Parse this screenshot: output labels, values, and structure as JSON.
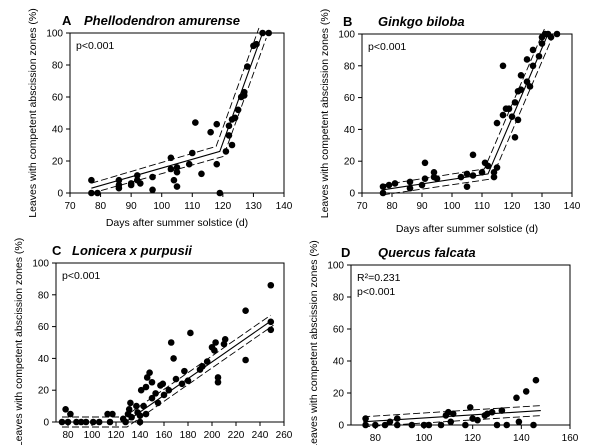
{
  "chart_data": [
    {
      "type": "scatter",
      "letter": "A",
      "title": "Phellodendron amurense",
      "xlabel": "Days after summer solstice (d)",
      "ylabel": "Leaves with competent abscission zones (%)",
      "stat": "p<0.001",
      "xlim": [
        70,
        140
      ],
      "ylim": [
        0,
        100
      ],
      "xticks": [
        70,
        80,
        90,
        100,
        110,
        120,
        130,
        140
      ],
      "yticks": [
        0,
        20,
        40,
        60,
        80,
        100
      ],
      "fit": {
        "kind": "piecewise",
        "break": 119,
        "y_start": 3,
        "y_break": 26,
        "x_end": 133,
        "y_end": 100
      },
      "points": [
        [
          77,
          0
        ],
        [
          77,
          8
        ],
        [
          79,
          0
        ],
        [
          86,
          3
        ],
        [
          86,
          8
        ],
        [
          86,
          5
        ],
        [
          90,
          6
        ],
        [
          90,
          5
        ],
        [
          92,
          8
        ],
        [
          92,
          11
        ],
        [
          93,
          6
        ],
        [
          97,
          10
        ],
        [
          97,
          2
        ],
        [
          103,
          22
        ],
        [
          103,
          15
        ],
        [
          104,
          8
        ],
        [
          105,
          13
        ],
        [
          105,
          16
        ],
        [
          105,
          4
        ],
        [
          109,
          18
        ],
        [
          110,
          25
        ],
        [
          111,
          44
        ],
        [
          113,
          12
        ],
        [
          116,
          38
        ],
        [
          118,
          43
        ],
        [
          118,
          18
        ],
        [
          119,
          0
        ],
        [
          121,
          26
        ],
        [
          122,
          42
        ],
        [
          122,
          36
        ],
        [
          123,
          46
        ],
        [
          123,
          30
        ],
        [
          124,
          47
        ],
        [
          125,
          52
        ],
        [
          126,
          60
        ],
        [
          127,
          61
        ],
        [
          127,
          63
        ],
        [
          128,
          79
        ],
        [
          130,
          92
        ],
        [
          131,
          93
        ],
        [
          133,
          100
        ],
        [
          135,
          100
        ]
      ]
    },
    {
      "type": "scatter",
      "letter": "B",
      "title": "Ginkgo biloba",
      "xlabel": "Days after summer solstice (d)",
      "ylabel": "Leaves with competent abscission zones (%)",
      "stat": "p<0.001",
      "xlim": [
        70,
        140
      ],
      "ylim": [
        0,
        100
      ],
      "xticks": [
        70,
        80,
        90,
        100,
        110,
        120,
        130,
        140
      ],
      "yticks": [
        0,
        20,
        40,
        60,
        80,
        100
      ],
      "fit": {
        "kind": "piecewise",
        "break": 112,
        "y_start": 2,
        "y_break": 12,
        "x_end": 132,
        "y_end": 100
      },
      "points": [
        [
          77,
          0
        ],
        [
          77,
          4
        ],
        [
          79,
          5
        ],
        [
          81,
          6
        ],
        [
          86,
          7
        ],
        [
          86,
          3
        ],
        [
          90,
          5
        ],
        [
          91,
          9
        ],
        [
          91,
          19
        ],
        [
          94,
          10
        ],
        [
          94,
          13
        ],
        [
          95,
          9
        ],
        [
          103,
          10
        ],
        [
          105,
          12
        ],
        [
          105,
          4
        ],
        [
          107,
          11
        ],
        [
          107,
          24
        ],
        [
          110,
          13
        ],
        [
          111,
          19
        ],
        [
          112,
          17
        ],
        [
          114,
          13
        ],
        [
          114,
          10
        ],
        [
          115,
          16
        ],
        [
          115,
          44
        ],
        [
          117,
          49
        ],
        [
          117,
          80
        ],
        [
          118,
          53
        ],
        [
          119,
          53
        ],
        [
          120,
          48
        ],
        [
          121,
          57
        ],
        [
          121,
          35
        ],
        [
          122,
          46
        ],
        [
          122,
          64
        ],
        [
          123,
          65
        ],
        [
          123,
          74
        ],
        [
          125,
          84
        ],
        [
          125,
          70
        ],
        [
          126,
          67
        ],
        [
          127,
          80
        ],
        [
          127,
          90
        ],
        [
          129,
          86
        ],
        [
          130,
          98
        ],
        [
          130,
          94
        ],
        [
          131,
          100
        ],
        [
          132,
          100
        ],
        [
          133,
          98
        ],
        [
          135,
          100
        ]
      ]
    },
    {
      "type": "scatter",
      "letter": "C",
      "title": "Lonicera x purpusii",
      "xlabel": "",
      "ylabel": "Leaves with competent abscission zones (%)",
      "stat": "p<0.001",
      "xlim": [
        70,
        260
      ],
      "ylim": [
        0,
        100
      ],
      "xticks": [
        80,
        100,
        120,
        140,
        160,
        180,
        200,
        220,
        240,
        260
      ],
      "yticks": [
        0,
        20,
        40,
        60,
        80,
        100
      ],
      "fit": {
        "kind": "piecewise",
        "break": 128,
        "y_start": 0,
        "y_break": 0,
        "x_end": 250,
        "y_end": 64
      },
      "points": [
        [
          75,
          0
        ],
        [
          78,
          8
        ],
        [
          80,
          0
        ],
        [
          82,
          5
        ],
        [
          87,
          0
        ],
        [
          91,
          0
        ],
        [
          95,
          0
        ],
        [
          101,
          0
        ],
        [
          106,
          0
        ],
        [
          113,
          5
        ],
        [
          115,
          0
        ],
        [
          117,
          5
        ],
        [
          126,
          2
        ],
        [
          128,
          0
        ],
        [
          130,
          5
        ],
        [
          131,
          8
        ],
        [
          132,
          12
        ],
        [
          133,
          3
        ],
        [
          137,
          10
        ],
        [
          138,
          6
        ],
        [
          140,
          0
        ],
        [
          140,
          4
        ],
        [
          141,
          20
        ],
        [
          143,
          10
        ],
        [
          145,
          5
        ],
        [
          145,
          22
        ],
        [
          146,
          28
        ],
        [
          148,
          31
        ],
        [
          150,
          25
        ],
        [
          150,
          15
        ],
        [
          153,
          18
        ],
        [
          155,
          12
        ],
        [
          157,
          23
        ],
        [
          159,
          24
        ],
        [
          160,
          17
        ],
        [
          164,
          20
        ],
        [
          166,
          50
        ],
        [
          168,
          40
        ],
        [
          170,
          27
        ],
        [
          175,
          24
        ],
        [
          177,
          32
        ],
        [
          180,
          26
        ],
        [
          182,
          56
        ],
        [
          190,
          33
        ],
        [
          192,
          35
        ],
        [
          196,
          38
        ],
        [
          200,
          47
        ],
        [
          202,
          45
        ],
        [
          203,
          50
        ],
        [
          205,
          25
        ],
        [
          205,
          28
        ],
        [
          210,
          49
        ],
        [
          211,
          52
        ],
        [
          228,
          39
        ],
        [
          228,
          70
        ],
        [
          249,
          58
        ],
        [
          249,
          63
        ],
        [
          249,
          86
        ]
      ]
    },
    {
      "type": "scatter",
      "letter": "D",
      "title": "Quercus falcata",
      "xlabel": "",
      "ylabel": "Leaves with competent abscission zones (%)",
      "stat_r2": "R²=0.231",
      "stat": "p<0.001",
      "xlim": [
        70,
        160
      ],
      "ylim": [
        0,
        100
      ],
      "xticks": [
        80,
        100,
        120,
        140,
        160
      ],
      "yticks": [
        0,
        20,
        40,
        60,
        80,
        100
      ],
      "fit": {
        "kind": "linear",
        "x_start": 75,
        "y_start": 2,
        "x_end": 148,
        "y_end": 9
      },
      "points": [
        [
          76,
          4
        ],
        [
          76,
          0
        ],
        [
          80,
          0
        ],
        [
          84,
          0
        ],
        [
          86,
          2
        ],
        [
          89,
          4
        ],
        [
          89,
          0
        ],
        [
          95,
          0
        ],
        [
          100,
          0
        ],
        [
          102,
          0
        ],
        [
          107,
          0
        ],
        [
          109,
          6
        ],
        [
          110,
          8
        ],
        [
          111,
          2
        ],
        [
          112,
          7
        ],
        [
          117,
          0
        ],
        [
          119,
          11
        ],
        [
          120,
          4
        ],
        [
          122,
          3
        ],
        [
          125,
          6
        ],
        [
          126,
          7
        ],
        [
          128,
          8
        ],
        [
          130,
          0
        ],
        [
          132,
          9
        ],
        [
          134,
          0
        ],
        [
          138,
          17
        ],
        [
          139,
          2
        ],
        [
          142,
          21
        ],
        [
          145,
          0
        ],
        [
          146,
          28
        ]
      ]
    }
  ]
}
